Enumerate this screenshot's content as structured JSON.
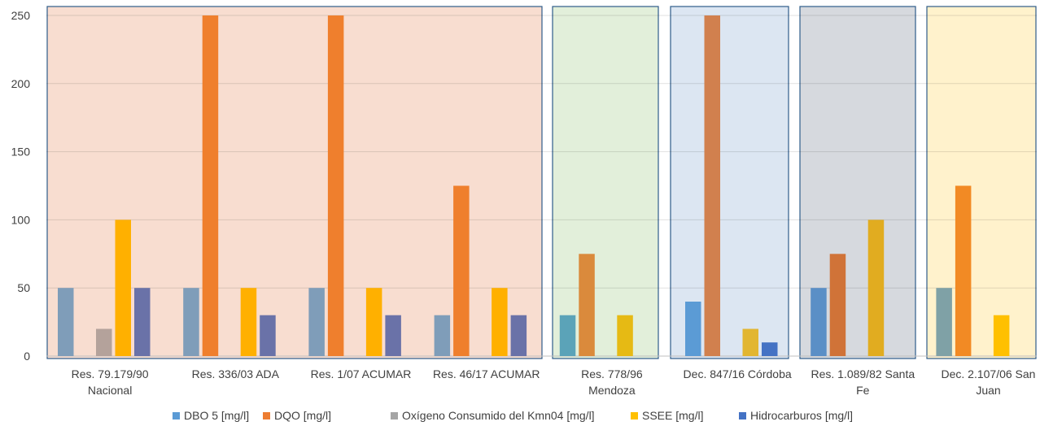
{
  "chart_data": {
    "type": "bar",
    "title": "",
    "xlabel": "",
    "ylabel": "",
    "ylim": [
      0,
      250
    ],
    "yticks": [
      0,
      50,
      100,
      150,
      200,
      250
    ],
    "grid": true,
    "legend_position": "bottom",
    "categories": [
      [
        "Res. 79.179/90",
        "Nacional"
      ],
      [
        "Res. 336/03 ADA"
      ],
      [
        "Res. 1/07 ACUMAR"
      ],
      [
        "Res. 46/17 ACUMAR"
      ],
      [
        "Res. 778/96",
        "Mendoza"
      ],
      [
        "Dec. 847/16 Córdoba"
      ],
      [
        "Res. 1.089/82 Santa",
        "Fe"
      ],
      [
        "Dec. 2.107/06 San",
        "Juan"
      ]
    ],
    "series": [
      {
        "name": "DBO 5 [mg/l]",
        "color": "#5B9BD5",
        "values": [
          50,
          50,
          50,
          30,
          30,
          40,
          50,
          50
        ]
      },
      {
        "name": "DQO [mg/l]",
        "color": "#ED7D31",
        "values": [
          null,
          250,
          250,
          125,
          75,
          250,
          75,
          125
        ]
      },
      {
        "name": "Oxígeno Consumido del Kmn04 [mg/l]",
        "color": "#A5A5A5",
        "values": [
          20,
          null,
          null,
          null,
          null,
          null,
          null,
          null
        ]
      },
      {
        "name": "SSEE [mg/l]",
        "color": "#FFC000",
        "values": [
          100,
          50,
          50,
          50,
          30,
          20,
          100,
          30
        ]
      },
      {
        "name": "Hidrocarburos [mg/l]",
        "color": "#4472C4",
        "values": [
          50,
          30,
          30,
          30,
          null,
          10,
          null,
          null
        ]
      }
    ],
    "groups": [
      {
        "categories": [
          0,
          3
        ],
        "fill": "#F8DDD0",
        "border": "#2E5C8A"
      },
      {
        "categories": [
          4,
          4
        ],
        "fill": "#E2EFDA",
        "border": "#2E5C8A"
      },
      {
        "categories": [
          5,
          5
        ],
        "fill": "#DCE6F2",
        "border": "#2E5C8A"
      },
      {
        "categories": [
          6,
          6
        ],
        "fill": "#D6D9DE",
        "border": "#2E5C8A"
      },
      {
        "categories": [
          7,
          7
        ],
        "fill": "#FFF2CC",
        "border": "#2E5C8A"
      }
    ],
    "bar_overrides": [
      {
        "category": 0,
        "colors": [
          "#7F9DB9",
          null,
          "#B4A29B",
          "#FFB000",
          "#6A72A8"
        ]
      },
      {
        "category": 1,
        "colors": [
          "#7F9DB9",
          "#EF7F2D",
          null,
          "#FFB000",
          "#6A72A8"
        ]
      },
      {
        "category": 2,
        "colors": [
          "#7F9DB9",
          "#EF7F2D",
          null,
          "#FFB000",
          "#6A72A8"
        ]
      },
      {
        "category": 3,
        "colors": [
          "#7F9DB9",
          "#EF7F2D",
          null,
          "#FFB000",
          "#6A72A8"
        ]
      },
      {
        "category": 4,
        "colors": [
          "#5BA3B8",
          "#DA8A3C",
          null,
          "#E6BA14",
          null
        ]
      },
      {
        "category": 5,
        "colors": [
          "#5B9BD5",
          "#D1804E",
          null,
          "#E2B631",
          "#4472C4"
        ]
      },
      {
        "category": 6,
        "colors": [
          "#5A8FC6",
          "#D07338",
          null,
          "#E1AC20",
          null
        ]
      },
      {
        "category": 7,
        "colors": [
          "#7FA1A6",
          "#F28A24",
          null,
          "#FFC000",
          null
        ]
      }
    ]
  }
}
